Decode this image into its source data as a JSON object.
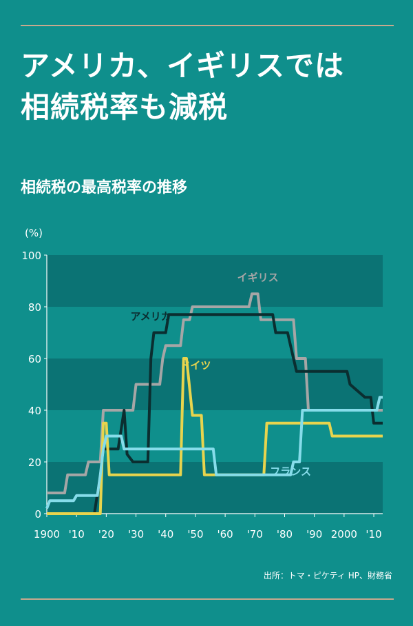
{
  "header": {
    "title_line1": "アメリカ、イギリスでは",
    "title_line2": "相続税率も減税",
    "subtitle": "相続税の最高税率の推移"
  },
  "footer": {
    "source": "出所：トマ・ピケティ HP、財務省"
  },
  "colors": {
    "background": "#0f8f8c",
    "band": "#0b7374",
    "rule": "#c8a98e",
    "usa": "#0b2e30",
    "uk": "#a6a6a6",
    "germany": "#e8d44d",
    "france": "#86dcea"
  },
  "chart_data": {
    "type": "line",
    "title": "相続税の最高税率の推移",
    "ylabel": "(%)",
    "xlabel": "",
    "xlim": [
      1900,
      2013
    ],
    "ylim": [
      0,
      100
    ],
    "y_ticks": [
      0,
      20,
      40,
      60,
      80,
      100
    ],
    "x_ticks": [
      {
        "x": 1900,
        "label": "1900"
      },
      {
        "x": 1910,
        "label": "'10"
      },
      {
        "x": 1920,
        "label": "'20"
      },
      {
        "x": 1930,
        "label": "'30"
      },
      {
        "x": 1940,
        "label": "'40"
      },
      {
        "x": 1950,
        "label": "'50"
      },
      {
        "x": 1960,
        "label": "'60"
      },
      {
        "x": 1970,
        "label": "'70"
      },
      {
        "x": 1980,
        "label": "'80"
      },
      {
        "x": 1990,
        "label": "'90"
      },
      {
        "x": 2000,
        "label": "2000"
      },
      {
        "x": 2010,
        "label": "'10"
      }
    ],
    "grid": "alternating horizontal bands",
    "series": [
      {
        "name": "イギリス",
        "color": "#a6a6a6",
        "points": [
          [
            1900,
            8
          ],
          [
            1906,
            8
          ],
          [
            1907,
            15
          ],
          [
            1913,
            15
          ],
          [
            1914,
            20
          ],
          [
            1918,
            20
          ],
          [
            1919,
            40
          ],
          [
            1929,
            40
          ],
          [
            1930,
            50
          ],
          [
            1938,
            50
          ],
          [
            1939,
            60
          ],
          [
            1940,
            65
          ],
          [
            1945,
            65
          ],
          [
            1946,
            75
          ],
          [
            1948,
            75
          ],
          [
            1949,
            80
          ],
          [
            1968,
            80
          ],
          [
            1969,
            85
          ],
          [
            1971,
            85
          ],
          [
            1972,
            75
          ],
          [
            1975,
            75
          ],
          [
            1976,
            75
          ],
          [
            1983,
            75
          ],
          [
            1984,
            60
          ],
          [
            1987,
            60
          ],
          [
            1988,
            40
          ],
          [
            2013,
            40
          ]
        ]
      },
      {
        "name": "アメリカ",
        "color": "#0b2e30",
        "points": [
          [
            1900,
            0
          ],
          [
            1916,
            0
          ],
          [
            1918,
            15
          ],
          [
            1919,
            25
          ],
          [
            1924,
            25
          ],
          [
            1926,
            40
          ],
          [
            1927,
            23
          ],
          [
            1929,
            20
          ],
          [
            1934,
            20
          ],
          [
            1935,
            60
          ],
          [
            1936,
            70
          ],
          [
            1940,
            70
          ],
          [
            1941,
            77
          ],
          [
            1976,
            77
          ],
          [
            1977,
            70
          ],
          [
            1981,
            70
          ],
          [
            1982,
            65
          ],
          [
            1983,
            60
          ],
          [
            1984,
            55
          ],
          [
            2001,
            55
          ],
          [
            2002,
            50
          ],
          [
            2007,
            45
          ],
          [
            2009,
            45
          ],
          [
            2010,
            35
          ],
          [
            2013,
            35
          ]
        ]
      },
      {
        "name": "ドイツ",
        "color": "#e8d44d",
        "points": [
          [
            1900,
            0
          ],
          [
            1918,
            0
          ],
          [
            1919,
            35
          ],
          [
            1920,
            35
          ],
          [
            1921,
            15
          ],
          [
            1945,
            15
          ],
          [
            1946,
            60
          ],
          [
            1947,
            60
          ],
          [
            1949,
            38
          ],
          [
            1952,
            38
          ],
          [
            1953,
            15
          ],
          [
            1973,
            15
          ],
          [
            1974,
            35
          ],
          [
            1995,
            35
          ],
          [
            1996,
            30
          ],
          [
            2013,
            30
          ]
        ]
      },
      {
        "name": "フランス",
        "color": "#86dcea",
        "points": [
          [
            1900,
            2
          ],
          [
            1901,
            5
          ],
          [
            1909,
            5
          ],
          [
            1910,
            7
          ],
          [
            1917,
            7
          ],
          [
            1918,
            15
          ],
          [
            1919,
            25
          ],
          [
            1920,
            30
          ],
          [
            1925,
            30
          ],
          [
            1926,
            25
          ],
          [
            1956,
            25
          ],
          [
            1957,
            15
          ],
          [
            1982,
            15
          ],
          [
            1983,
            20
          ],
          [
            1985,
            20
          ],
          [
            1986,
            40
          ],
          [
            2011,
            40
          ],
          [
            2012,
            45
          ],
          [
            2013,
            45
          ]
        ]
      }
    ],
    "labels": [
      {
        "series": "イギリス",
        "text": "イギリス",
        "x": 1971,
        "y": 90
      },
      {
        "series": "アメリカ",
        "text": "アメリカ",
        "x": 1935,
        "y": 75
      },
      {
        "series": "ドイツ",
        "text": "ドイツ",
        "x": 1950,
        "y": 56
      },
      {
        "series": "フランス",
        "text": "フランス",
        "x": 1982,
        "y": 15
      }
    ]
  }
}
